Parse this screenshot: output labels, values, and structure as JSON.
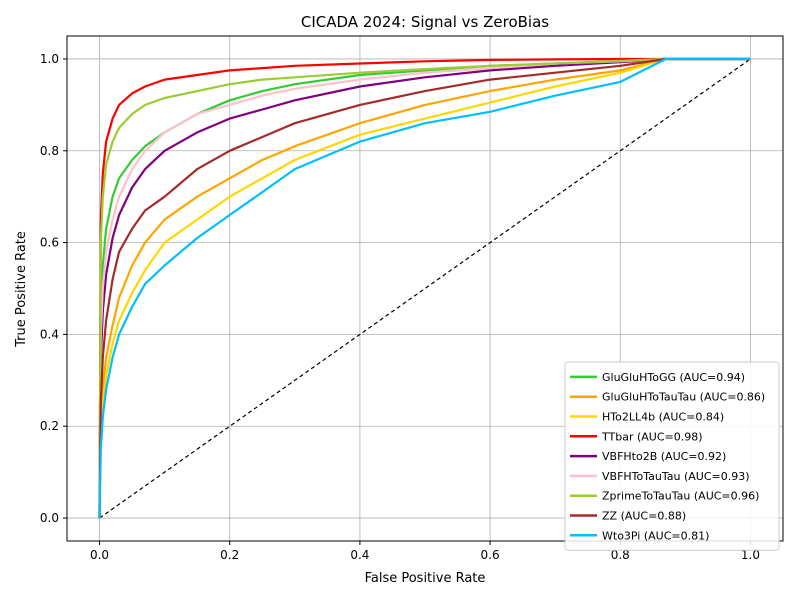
{
  "chart_data": {
    "type": "line",
    "title": "CICADA 2024: Signal vs ZeroBias",
    "xlabel": "False Positive Rate",
    "ylabel": "True Positive Rate",
    "xlim": [
      -0.05,
      1.05
    ],
    "ylim": [
      -0.05,
      1.05
    ],
    "xticks": [
      "0.0",
      "0.2",
      "0.4",
      "0.6",
      "0.8",
      "1.0"
    ],
    "yticks": [
      "0.0",
      "0.2",
      "0.4",
      "0.6",
      "0.8",
      "1.0"
    ],
    "grid": true,
    "legend_position": "lower-right",
    "diagonal": {
      "x": [
        0,
        1
      ],
      "y": [
        0,
        1
      ],
      "color": "#000000",
      "style": "dashed"
    },
    "series": [
      {
        "name": "GluGluHToGG (AUC=0.94)",
        "color": "#33cc33",
        "x": [
          0,
          0.002,
          0.005,
          0.01,
          0.02,
          0.03,
          0.05,
          0.07,
          0.1,
          0.15,
          0.2,
          0.25,
          0.3,
          0.4,
          0.5,
          0.6,
          0.7,
          0.8,
          0.87,
          1.0
        ],
        "y": [
          0,
          0.4,
          0.55,
          0.63,
          0.7,
          0.74,
          0.78,
          0.81,
          0.84,
          0.88,
          0.91,
          0.93,
          0.945,
          0.965,
          0.975,
          0.985,
          0.99,
          0.995,
          1.0,
          1.0
        ]
      },
      {
        "name": "GluGluHToTauTau (AUC=0.86)",
        "color": "#ffa500",
        "x": [
          0,
          0.002,
          0.005,
          0.01,
          0.02,
          0.03,
          0.05,
          0.07,
          0.1,
          0.15,
          0.2,
          0.25,
          0.3,
          0.4,
          0.5,
          0.6,
          0.7,
          0.8,
          0.87,
          1.0
        ],
        "y": [
          0,
          0.2,
          0.28,
          0.35,
          0.42,
          0.48,
          0.55,
          0.6,
          0.65,
          0.7,
          0.74,
          0.78,
          0.81,
          0.86,
          0.9,
          0.93,
          0.955,
          0.975,
          1.0,
          1.0
        ]
      },
      {
        "name": "HTo2LL4b (AUC=0.84)",
        "color": "#ffd700",
        "x": [
          0,
          0.002,
          0.005,
          0.01,
          0.02,
          0.03,
          0.05,
          0.07,
          0.1,
          0.15,
          0.2,
          0.25,
          0.3,
          0.4,
          0.5,
          0.6,
          0.7,
          0.8,
          0.87,
          1.0
        ],
        "y": [
          0,
          0.18,
          0.25,
          0.31,
          0.38,
          0.43,
          0.49,
          0.54,
          0.6,
          0.65,
          0.7,
          0.74,
          0.78,
          0.835,
          0.87,
          0.905,
          0.94,
          0.97,
          1.0,
          1.0
        ]
      },
      {
        "name": "TTbar (AUC=0.98)",
        "color": "#ff0000",
        "x": [
          0,
          0.002,
          0.005,
          0.01,
          0.02,
          0.03,
          0.05,
          0.07,
          0.1,
          0.15,
          0.2,
          0.25,
          0.3,
          0.4,
          0.5,
          0.6,
          0.7,
          0.8,
          0.87,
          1.0
        ],
        "y": [
          0,
          0.65,
          0.75,
          0.82,
          0.87,
          0.9,
          0.925,
          0.94,
          0.955,
          0.965,
          0.975,
          0.98,
          0.985,
          0.99,
          0.995,
          0.998,
          0.999,
          1.0,
          1.0,
          1.0
        ]
      },
      {
        "name": "VBFHto2B (AUC=0.92)",
        "color": "#800080",
        "x": [
          0,
          0.002,
          0.005,
          0.01,
          0.02,
          0.03,
          0.05,
          0.07,
          0.1,
          0.15,
          0.2,
          0.25,
          0.3,
          0.4,
          0.5,
          0.6,
          0.7,
          0.8,
          0.87,
          1.0
        ],
        "y": [
          0,
          0.35,
          0.45,
          0.53,
          0.61,
          0.66,
          0.72,
          0.76,
          0.8,
          0.84,
          0.87,
          0.89,
          0.91,
          0.94,
          0.96,
          0.975,
          0.985,
          0.993,
          1.0,
          1.0
        ]
      },
      {
        "name": "VBFHToTauTau (AUC=0.93)",
        "color": "#ffc0cb",
        "x": [
          0,
          0.002,
          0.005,
          0.01,
          0.02,
          0.03,
          0.05,
          0.07,
          0.1,
          0.15,
          0.2,
          0.25,
          0.3,
          0.4,
          0.5,
          0.6,
          0.7,
          0.8,
          0.87,
          1.0
        ],
        "y": [
          0,
          0.4,
          0.5,
          0.58,
          0.65,
          0.7,
          0.76,
          0.8,
          0.84,
          0.88,
          0.9,
          0.92,
          0.935,
          0.955,
          0.97,
          0.98,
          0.99,
          0.995,
          1.0,
          1.0
        ]
      },
      {
        "name": "ZprimeToTauTau (AUC=0.96)",
        "color": "#9acd32",
        "x": [
          0,
          0.002,
          0.005,
          0.01,
          0.02,
          0.03,
          0.05,
          0.07,
          0.1,
          0.15,
          0.2,
          0.25,
          0.3,
          0.4,
          0.5,
          0.6,
          0.7,
          0.8,
          0.87,
          1.0
        ],
        "y": [
          0,
          0.6,
          0.7,
          0.77,
          0.82,
          0.85,
          0.88,
          0.9,
          0.915,
          0.93,
          0.945,
          0.955,
          0.96,
          0.97,
          0.978,
          0.985,
          0.99,
          0.996,
          1.0,
          1.0
        ]
      },
      {
        "name": "ZZ (AUC=0.88)",
        "color": "#a52a2a",
        "x": [
          0,
          0.002,
          0.005,
          0.01,
          0.02,
          0.03,
          0.05,
          0.07,
          0.1,
          0.15,
          0.2,
          0.25,
          0.3,
          0.4,
          0.5,
          0.6,
          0.7,
          0.8,
          0.87,
          1.0
        ],
        "y": [
          0,
          0.25,
          0.35,
          0.43,
          0.52,
          0.58,
          0.63,
          0.67,
          0.7,
          0.76,
          0.8,
          0.83,
          0.86,
          0.9,
          0.93,
          0.955,
          0.97,
          0.985,
          1.0,
          1.0
        ]
      },
      {
        "name": "Wto3Pi (AUC=0.81)",
        "color": "#00bfff",
        "x": [
          0,
          0.002,
          0.005,
          0.01,
          0.02,
          0.03,
          0.05,
          0.07,
          0.1,
          0.15,
          0.2,
          0.25,
          0.3,
          0.4,
          0.5,
          0.6,
          0.7,
          0.8,
          0.87,
          1.0
        ],
        "y": [
          0,
          0.15,
          0.22,
          0.28,
          0.35,
          0.4,
          0.46,
          0.51,
          0.55,
          0.61,
          0.66,
          0.71,
          0.76,
          0.82,
          0.86,
          0.885,
          0.92,
          0.95,
          1.0,
          1.0
        ]
      }
    ]
  }
}
